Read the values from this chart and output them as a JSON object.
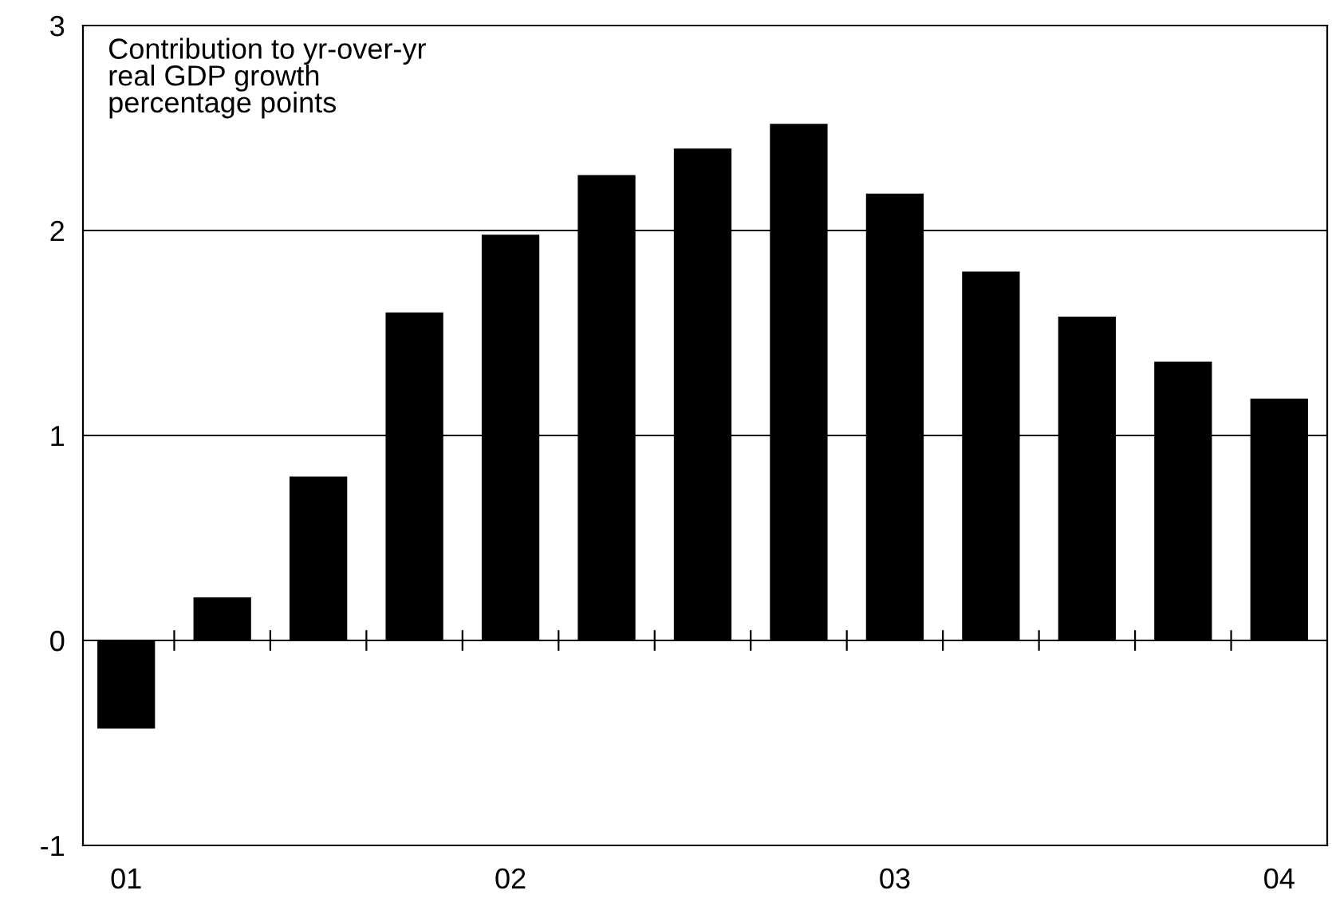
{
  "chart_data": {
    "type": "bar",
    "categories": [
      "01",
      null,
      null,
      null,
      "02",
      null,
      null,
      null,
      "03",
      null,
      null,
      null,
      "04"
    ],
    "values": [
      -0.43,
      0.21,
      0.8,
      1.6,
      1.98,
      2.27,
      2.4,
      2.52,
      2.18,
      1.8,
      1.58,
      1.36,
      1.18
    ],
    "color": "#000000",
    "ylim": [
      -1,
      3
    ],
    "yticks": [
      -1,
      0,
      1,
      2,
      3
    ],
    "grid": "y",
    "annotations": [
      "Contribution to yr-over-yr\nreal GDP growth\npercentage points"
    ]
  }
}
